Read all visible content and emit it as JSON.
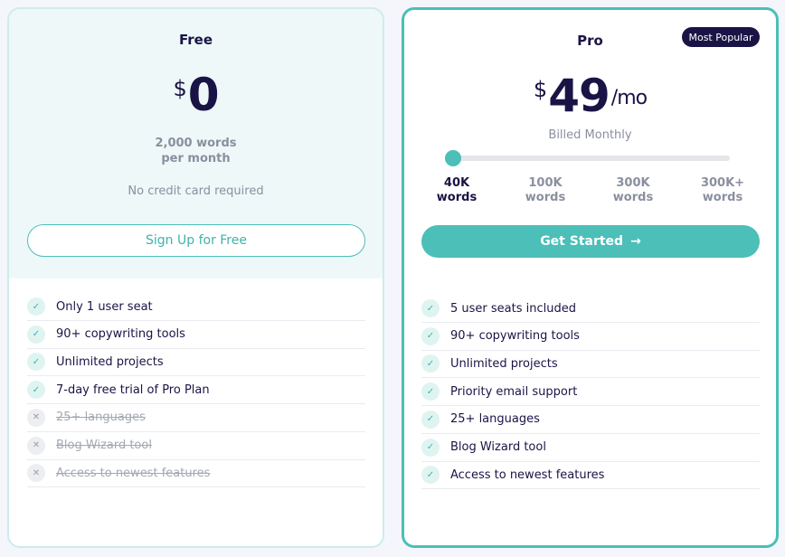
{
  "plans": [
    {
      "name": "Free",
      "currency": "$",
      "price": "0",
      "note_line1": "2,000 words",
      "note_line2": "per month",
      "subnote": "No credit card required",
      "button": "Sign Up for Free",
      "features": [
        {
          "text": "Only 1 user seat",
          "included": true
        },
        {
          "text": "90+ copywriting tools",
          "included": true
        },
        {
          "text": "Unlimited projects",
          "included": true
        },
        {
          "text": "7-day free trial of Pro Plan",
          "included": true
        },
        {
          "text": "25+ languages",
          "included": false
        },
        {
          "text": "Blog Wizard tool",
          "included": false
        },
        {
          "text": "Access to newest features",
          "included": false
        }
      ]
    },
    {
      "name": "Pro",
      "badge": "Most Popular",
      "currency": "$",
      "price": "49",
      "period": "/mo",
      "billing": "Billed Monthly",
      "button": "Get Started",
      "options": [
        {
          "amount": "40K",
          "unit": "words",
          "selected": true
        },
        {
          "amount": "100K",
          "unit": "words",
          "selected": false
        },
        {
          "amount": "300K",
          "unit": "words",
          "selected": false
        },
        {
          "amount": "300K+",
          "unit": "words",
          "selected": false
        }
      ],
      "features": [
        {
          "text": "5 user seats included",
          "included": true
        },
        {
          "text": "90+ copywriting tools",
          "included": true
        },
        {
          "text": "Unlimited projects",
          "included": true
        },
        {
          "text": "Priority email support",
          "included": true
        },
        {
          "text": "25+ languages",
          "included": true
        },
        {
          "text": "Blog Wizard tool",
          "included": true
        },
        {
          "text": "Access to newest features",
          "included": true
        }
      ]
    }
  ]
}
